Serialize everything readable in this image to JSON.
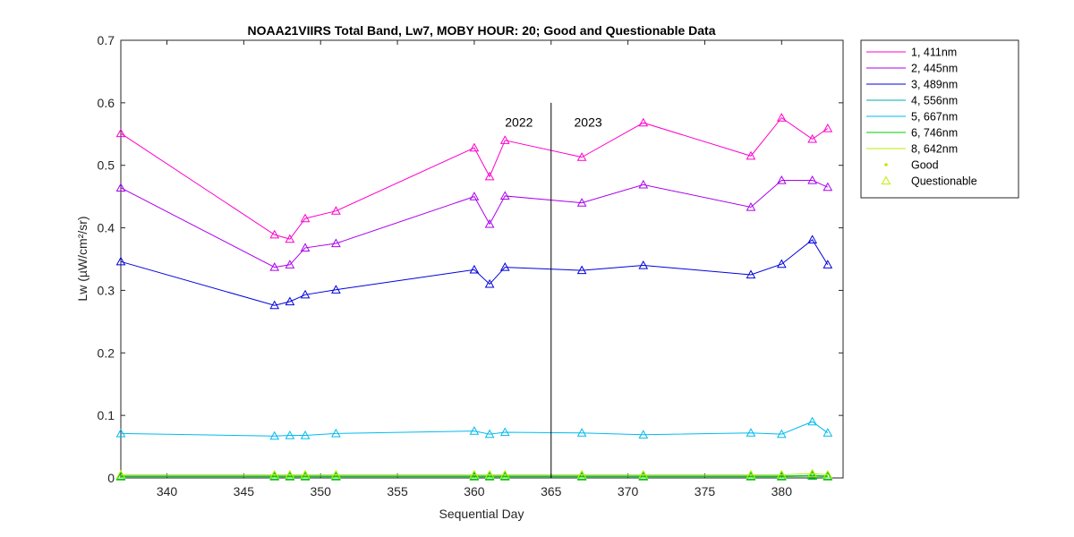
{
  "chart_data": {
    "type": "line",
    "title": "NOAA21VIIRS Total Band,  Lw7, MOBY HOUR: 20;  Good and Questionable Data",
    "xlabel": "Sequential Day",
    "ylabel": "Lw (µW/cm²/sr)",
    "xlim": [
      337,
      384
    ],
    "ylim": [
      0,
      0.7
    ],
    "xticks": [
      340,
      345,
      350,
      355,
      360,
      365,
      370,
      375,
      380
    ],
    "yticks": [
      0,
      0.1,
      0.2,
      0.3,
      0.4,
      0.5,
      0.6,
      0.7
    ],
    "x": [
      337,
      347,
      348,
      349,
      351,
      360,
      361,
      362,
      367,
      371,
      378,
      380,
      382,
      383
    ],
    "series": [
      {
        "name": "1, 411nm",
        "color": "#ff00cc",
        "values": [
          0.551,
          0.389,
          0.382,
          0.415,
          0.427,
          0.528,
          0.482,
          0.54,
          0.513,
          0.568,
          0.515,
          0.576,
          0.542,
          0.559
        ]
      },
      {
        "name": "2, 445nm",
        "color": "#aa00ee",
        "values": [
          0.464,
          0.337,
          0.341,
          0.368,
          0.375,
          0.45,
          0.406,
          0.451,
          0.44,
          0.469,
          0.433,
          0.476,
          0.476,
          0.465
        ]
      },
      {
        "name": "3, 489nm",
        "color": "#0000dd",
        "values": [
          0.346,
          0.276,
          0.282,
          0.293,
          0.301,
          0.333,
          0.31,
          0.337,
          0.332,
          0.34,
          0.325,
          0.342,
          0.381,
          0.341
        ]
      },
      {
        "name": "4, 556nm",
        "color": "#00aaaa",
        "values": [
          0.003,
          0.003,
          0.003,
          0.003,
          0.003,
          0.003,
          0.003,
          0.003,
          0.003,
          0.003,
          0.003,
          0.003,
          0.004,
          0.003
        ]
      },
      {
        "name": "5, 667nm",
        "color": "#00bbee",
        "values": [
          0.071,
          0.067,
          0.068,
          0.068,
          0.071,
          0.075,
          0.07,
          0.073,
          0.072,
          0.069,
          0.072,
          0.07,
          0.09,
          0.072
        ]
      },
      {
        "name": "6, 746nm",
        "color": "#00cc00",
        "values": [
          0.002,
          0.002,
          0.002,
          0.002,
          0.002,
          0.002,
          0.002,
          0.002,
          0.002,
          0.002,
          0.002,
          0.002,
          0.003,
          0.002
        ]
      },
      {
        "name": "8, 642nm",
        "color": "#bbee00",
        "values": [
          0.005,
          0.005,
          0.005,
          0.005,
          0.005,
          0.005,
          0.005,
          0.005,
          0.005,
          0.005,
          0.005,
          0.005,
          0.007,
          0.005
        ]
      }
    ],
    "marker_legend": [
      {
        "name": "Good",
        "marker": "dot",
        "color": "#bbee00"
      },
      {
        "name": "Questionable",
        "marker": "triangle",
        "color": "#bbee00"
      }
    ],
    "vline": {
      "x": 365,
      "ymax": 0.6
    },
    "annotations": [
      {
        "text": "2022",
        "x": 362,
        "y": 0.562
      },
      {
        "text": "2023",
        "x": 366.5,
        "y": 0.562
      }
    ],
    "legend_position": "outside-right-top",
    "grid": false
  }
}
